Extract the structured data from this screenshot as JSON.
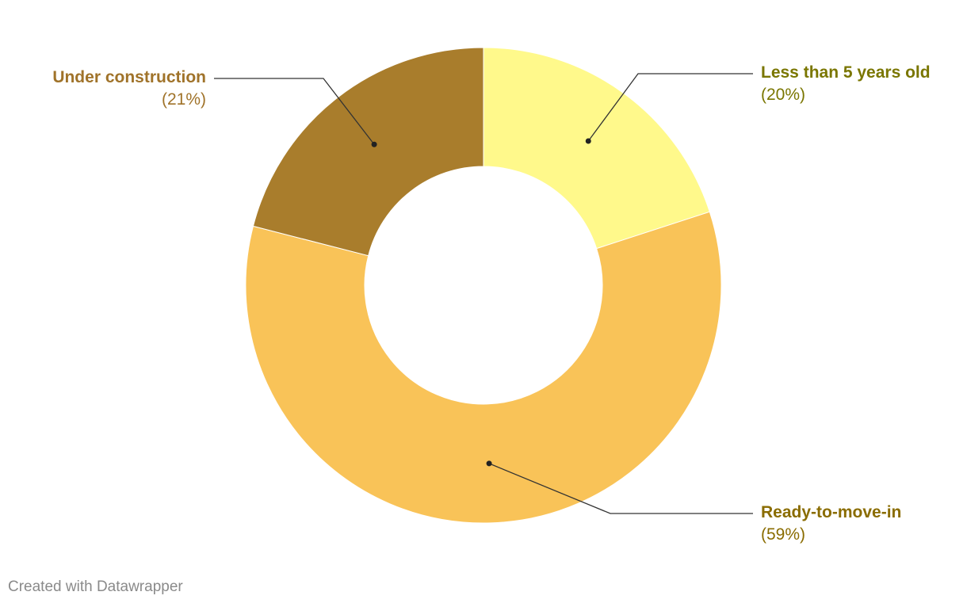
{
  "chart_data": {
    "type": "pie",
    "variant": "donut",
    "slices": [
      {
        "label": "Less than 5 years old",
        "value": 20,
        "display": "(20%)",
        "color": "#FFF98B",
        "label_color": "#7A7600",
        "label_side": "right"
      },
      {
        "label": "Ready-to-move-in",
        "value": 59,
        "display": "(59%)",
        "color": "#F9C358",
        "label_color": "#8A6C00",
        "label_side": "right"
      },
      {
        "label": "Under construction",
        "value": 21,
        "display": "(21%)",
        "color": "#A97D2C",
        "label_color": "#A0732A",
        "label_side": "left"
      }
    ]
  },
  "footer": {
    "credit": "Created with Datawrapper"
  }
}
